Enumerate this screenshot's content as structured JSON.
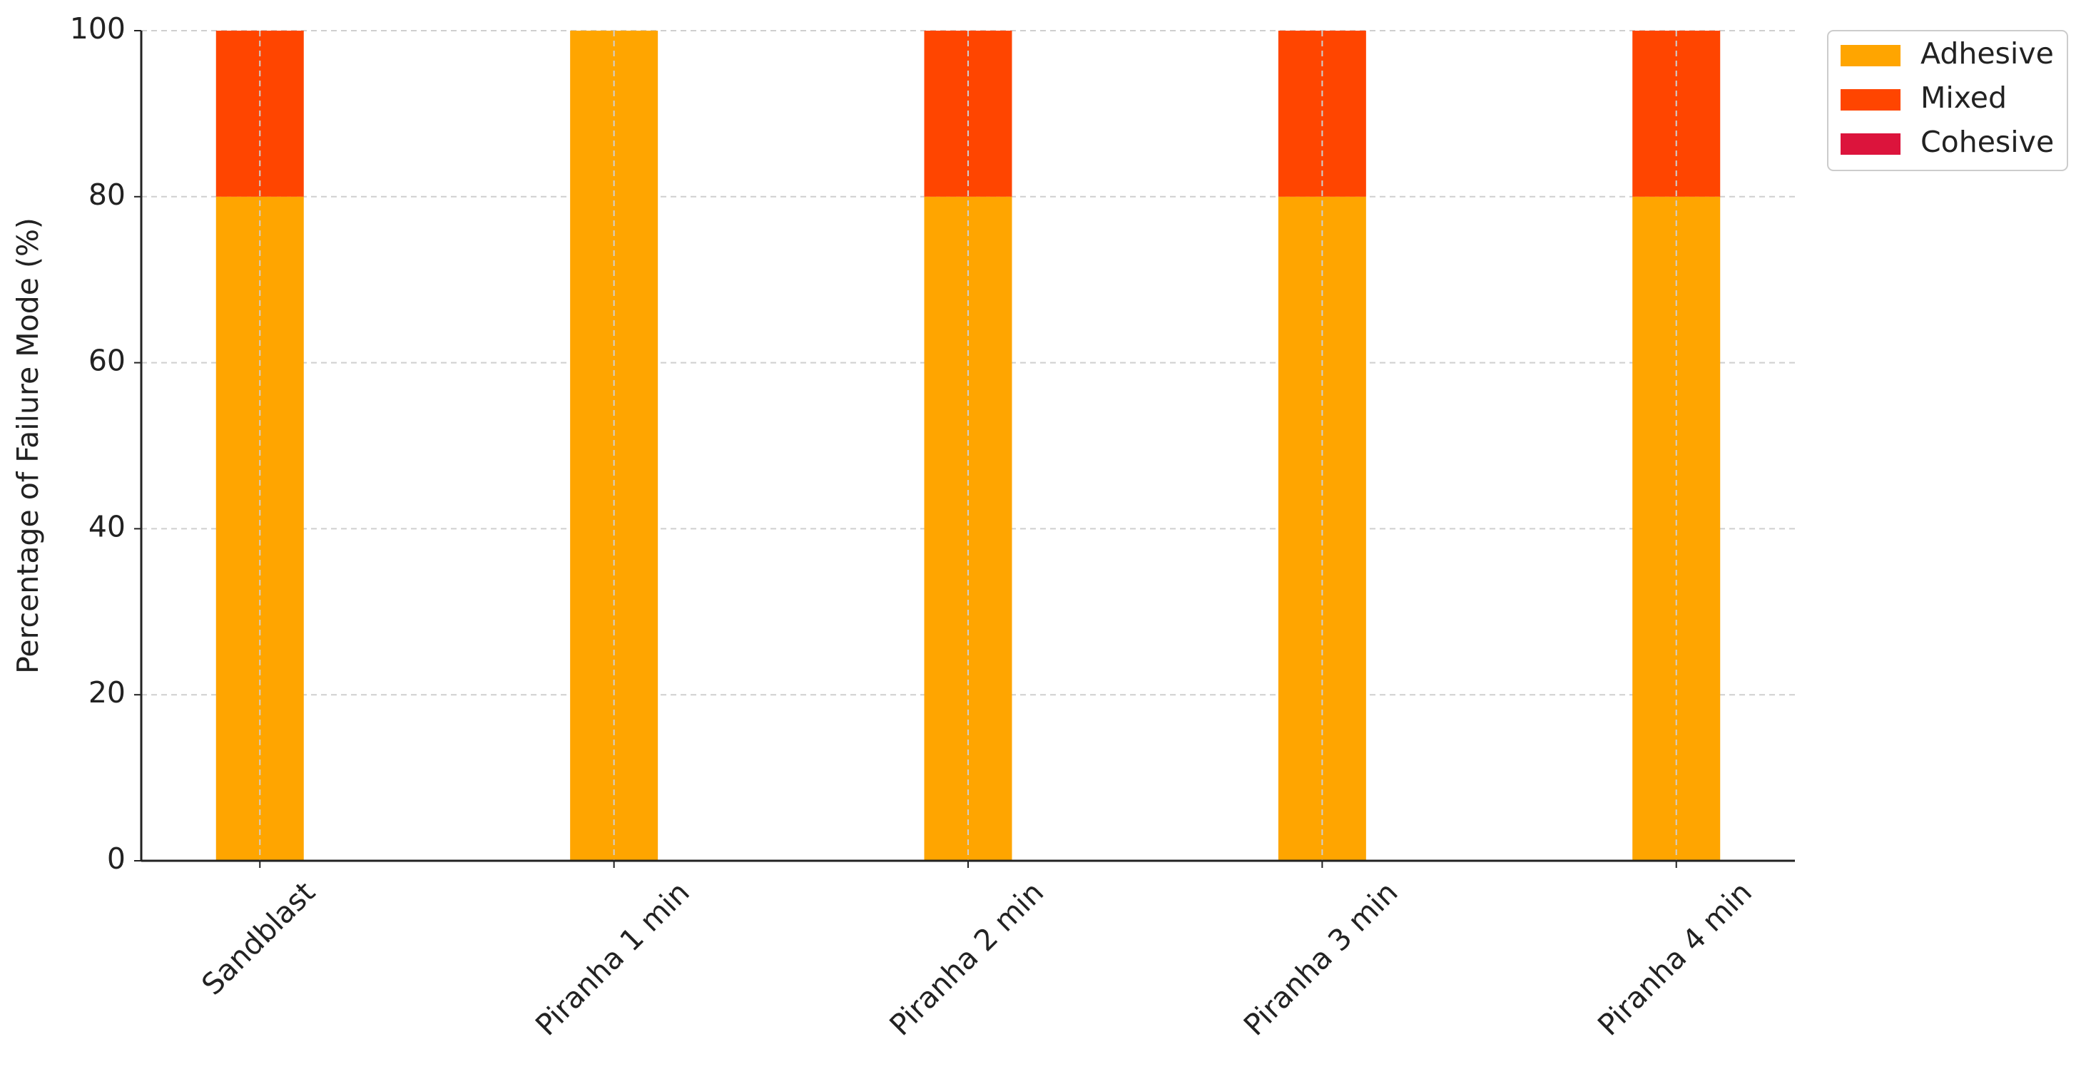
{
  "chart_data": {
    "type": "stacked_bar",
    "y_label": "Percentage of Failure Mode (%)",
    "categories": [
      "Sandblast",
      "Piranha 1 min",
      "Piranha 2 min",
      "Piranha 3 min",
      "Piranha 4 min"
    ],
    "series": [
      {
        "name": "Adhesive",
        "color": "#FFA500",
        "values": [
          80,
          100,
          80,
          80,
          80
        ]
      },
      {
        "name": "Mixed",
        "color": "#FF4500",
        "values": [
          20,
          0,
          20,
          20,
          20
        ]
      },
      {
        "name": "Cohesive",
        "color": "#DC143C",
        "values": [
          0,
          0,
          0,
          0,
          0
        ]
      }
    ],
    "ylim": [
      0,
      100
    ],
    "yticks": [
      0,
      20,
      40,
      60,
      80,
      100
    ],
    "grid": true,
    "legend": "outside upper right"
  }
}
